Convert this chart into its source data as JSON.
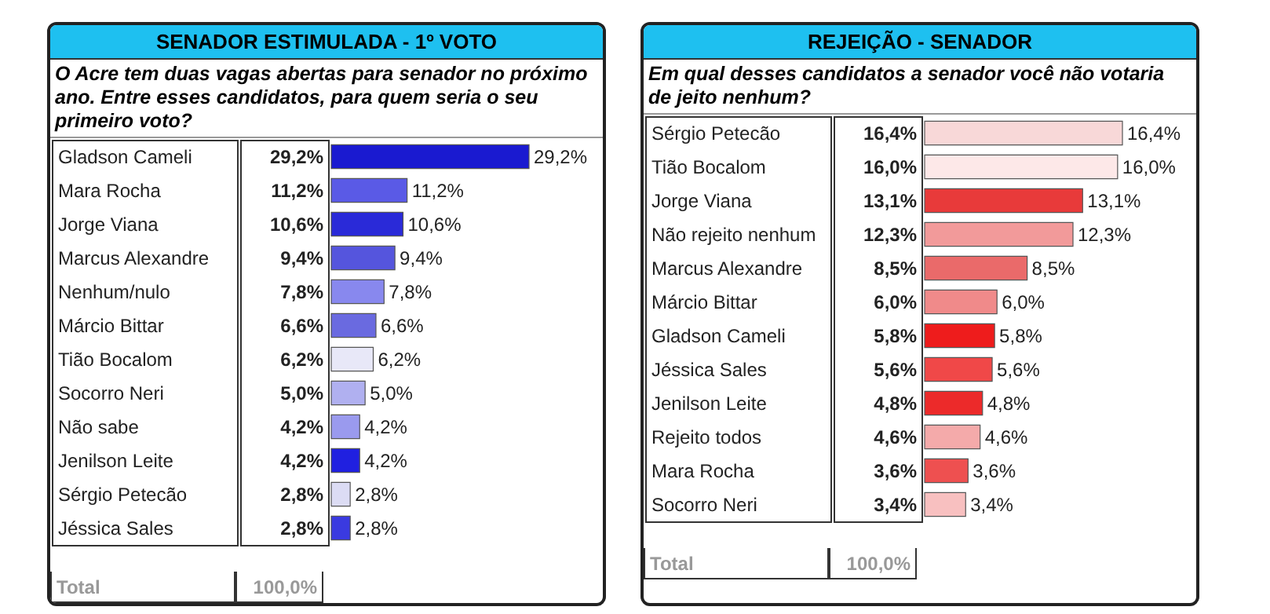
{
  "chart_data": [
    {
      "type": "bar",
      "orientation": "horizontal",
      "title": "SENADOR ESTIMULADA - 1º VOTO",
      "subtitle": "O Acre tem duas vagas abertas para senador no próximo ano. Entre esses candidatos, para quem seria o seu primeiro voto?",
      "categories": [
        "Gladson Cameli",
        "Mara Rocha",
        "Jorge Viana",
        "Marcus Alexandre",
        "Nenhum/nulo",
        "Márcio Bittar",
        "Tião Bocalom",
        "Socorro Neri",
        "Não sabe",
        "Jenilson Leite",
        "Sérgio Petecão",
        "Jéssica Sales"
      ],
      "values": [
        29.2,
        11.2,
        10.6,
        9.4,
        7.8,
        6.6,
        6.2,
        5.0,
        4.2,
        4.2,
        2.8,
        2.8
      ],
      "value_labels": [
        "29,2%",
        "11,2%",
        "10,6%",
        "9,4%",
        "7,8%",
        "6,6%",
        "6,2%",
        "5,0%",
        "4,2%",
        "4,2%",
        "2,8%",
        "2,8%"
      ],
      "colors": [
        "#1a1ad0",
        "#5a5ae6",
        "#2a2ad8",
        "#5555dd",
        "#8888ee",
        "#6a6ae0",
        "#e8e8f8",
        "#b0b0f0",
        "#9a9aee",
        "#2020e0",
        "#dcdcf4",
        "#3a3ae0"
      ],
      "annotations": [
        "Total",
        "100,0%"
      ]
    },
    {
      "type": "bar",
      "orientation": "horizontal",
      "title": "REJEIÇÃO - SENADOR",
      "subtitle": "Em qual desses candidatos a senador você não votaria de jeito nenhum?",
      "categories": [
        "Sérgio Petecão",
        "Tião Bocalom",
        "Jorge Viana",
        "Não rejeito nenhum",
        "Marcus Alexandre",
        "Márcio Bittar",
        "Gladson Cameli",
        "Jéssica Sales",
        "Jenilson Leite",
        "Rejeito todos",
        "Mara Rocha",
        "Socorro Neri"
      ],
      "values": [
        16.4,
        16.0,
        13.1,
        12.3,
        8.5,
        6.0,
        5.8,
        5.6,
        4.8,
        4.6,
        3.6,
        3.4
      ],
      "value_labels": [
        "16,4%",
        "16,0%",
        "13,1%",
        "12,3%",
        "8,5%",
        "6,0%",
        "5,8%",
        "5,6%",
        "4,8%",
        "4,6%",
        "3,6%",
        "3,4%"
      ],
      "colors": [
        "#f8d8d8",
        "#fde8e8",
        "#e83a3a",
        "#f29a9a",
        "#ea6a6a",
        "#f08a8a",
        "#ee1c1c",
        "#f04848",
        "#ec2a2a",
        "#f4aaaa",
        "#ee5050",
        "#f8c0c0"
      ],
      "annotations": [
        "Total",
        "100,0%"
      ]
    }
  ]
}
